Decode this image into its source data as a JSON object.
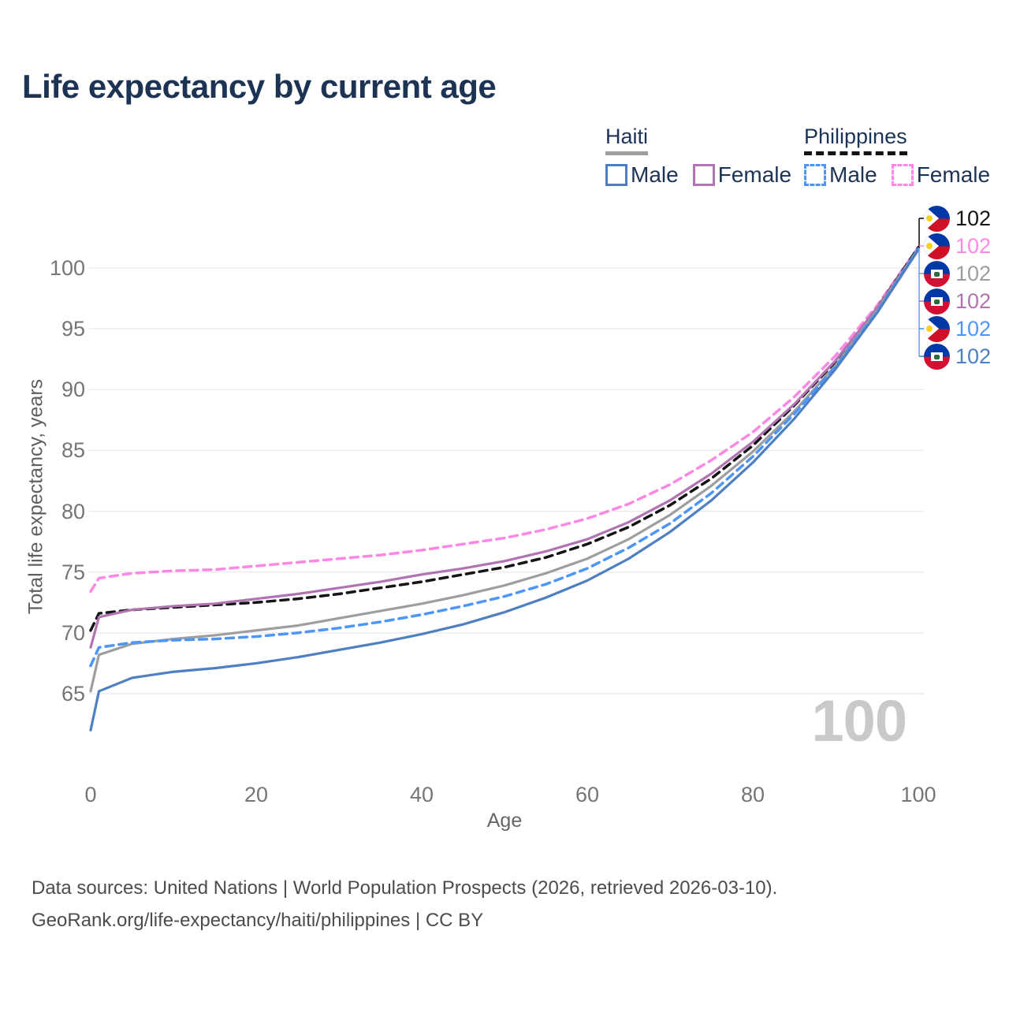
{
  "title": "Life expectancy by current age",
  "legend": {
    "haiti": {
      "title": "Haiti",
      "male": "Male",
      "female": "Female"
    },
    "philippines": {
      "title": "Philippines",
      "male": "Male",
      "female": "Female"
    }
  },
  "axes": {
    "x_title": "Age",
    "y_title": "Total life expectancy, years"
  },
  "watermark": "100",
  "footer": {
    "line1": "Data sources: United Nations | World Population Prospects (2026, retrieved 2026-03-10).",
    "line2": "GeoRank.org/life-expectancy/haiti/philippines | CC BY"
  },
  "colors": {
    "title_navy": "#1c3354",
    "haiti_male": "#4e7fc1",
    "haiti_female": "#b173b1",
    "haiti_both": "#9e9e9e",
    "philippines_male": "#4d96f7",
    "philippines_female": "#fd87e4",
    "philippines_both": "#141414",
    "gridline": "#ececec",
    "tick_text": "#757575",
    "watermark_gray": "#c9c9c9"
  },
  "chart_data": {
    "type": "line",
    "title": "Life expectancy by current age",
    "xlabel": "Age",
    "ylabel": "Total life expectancy, years",
    "xlim": [
      0,
      100
    ],
    "ylim": [
      61,
      103
    ],
    "xticks": [
      0,
      20,
      40,
      60,
      80,
      100
    ],
    "yticks": [
      65,
      70,
      75,
      80,
      85,
      90,
      95,
      100
    ],
    "grid": "horizontal",
    "legend_position": "top-right",
    "ages": [
      0,
      1,
      5,
      10,
      15,
      20,
      25,
      30,
      35,
      40,
      45,
      50,
      55,
      60,
      65,
      70,
      75,
      80,
      85,
      90,
      95,
      100
    ],
    "series": [
      {
        "id": "philippines-female",
        "name": "Philippines Female",
        "country": "Philippines",
        "sex": "Female",
        "style": "dashed",
        "color": "#fd87e4",
        "values": [
          73.4,
          74.5,
          74.9,
          75.1,
          75.2,
          75.5,
          75.8,
          76.1,
          76.4,
          76.8,
          77.3,
          77.8,
          78.5,
          79.4,
          80.6,
          82.2,
          84.2,
          86.5,
          89.4,
          92.8,
          96.9,
          101.7
        ]
      },
      {
        "id": "philippines-both",
        "name": "Philippines (both sexes)",
        "country": "Philippines",
        "sex": "Both",
        "style": "dashed",
        "color": "#141414",
        "values": [
          70.2,
          71.6,
          71.9,
          72.1,
          72.3,
          72.5,
          72.8,
          73.2,
          73.7,
          74.2,
          74.8,
          75.4,
          76.2,
          77.3,
          78.7,
          80.5,
          82.7,
          85.4,
          88.7,
          92.3,
          96.7,
          101.7
        ]
      },
      {
        "id": "haiti-female",
        "name": "Haiti Female",
        "country": "Haiti",
        "sex": "Female",
        "style": "solid",
        "color": "#b173b1",
        "values": [
          68.8,
          71.3,
          71.9,
          72.2,
          72.4,
          72.8,
          73.2,
          73.7,
          74.2,
          74.8,
          75.3,
          75.9,
          76.7,
          77.7,
          79.1,
          80.9,
          83.1,
          85.7,
          88.8,
          92.4,
          96.7,
          101.6
        ]
      },
      {
        "id": "haiti-both",
        "name": "Haiti (both sexes)",
        "country": "Haiti",
        "sex": "Both",
        "style": "solid",
        "color": "#9e9e9e",
        "values": [
          65.2,
          68.2,
          69.1,
          69.5,
          69.8,
          70.2,
          70.6,
          71.2,
          71.8,
          72.4,
          73.1,
          73.9,
          74.9,
          76.1,
          77.7,
          79.7,
          82.1,
          84.9,
          88.2,
          92.0,
          96.5,
          101.6
        ]
      },
      {
        "id": "philippines-male",
        "name": "Philippines Male",
        "country": "Philippines",
        "sex": "Male",
        "style": "dashed",
        "color": "#4d96f7",
        "values": [
          67.3,
          68.8,
          69.2,
          69.4,
          69.5,
          69.7,
          70.0,
          70.4,
          70.9,
          71.5,
          72.2,
          73.0,
          74.0,
          75.3,
          77.0,
          79.0,
          81.5,
          84.5,
          88.0,
          91.9,
          96.4,
          101.6
        ]
      },
      {
        "id": "haiti-male",
        "name": "Haiti Male",
        "country": "Haiti",
        "sex": "Male",
        "style": "solid",
        "color": "#4e7fc1",
        "values": [
          62.0,
          65.2,
          66.3,
          66.8,
          67.1,
          67.5,
          68.0,
          68.6,
          69.2,
          69.9,
          70.7,
          71.7,
          72.9,
          74.3,
          76.1,
          78.3,
          80.9,
          84.0,
          87.6,
          91.7,
          96.3,
          101.5
        ]
      }
    ],
    "endpoint_labels": [
      {
        "flag": "philippines",
        "series": "Philippines (both sexes)",
        "value": "102",
        "color": "#141414"
      },
      {
        "flag": "philippines",
        "series": "Philippines Female",
        "value": "102",
        "color": "#fd87e4"
      },
      {
        "flag": "haiti",
        "series": "Haiti (both sexes)",
        "value": "102",
        "color": "#9e9e9e"
      },
      {
        "flag": "haiti",
        "series": "Haiti Female",
        "value": "102",
        "color": "#b173b1"
      },
      {
        "flag": "philippines",
        "series": "Philippines Male",
        "value": "102",
        "color": "#4d96f7"
      },
      {
        "flag": "haiti",
        "series": "Haiti Male",
        "value": "102",
        "color": "#4e7fc1"
      }
    ]
  }
}
